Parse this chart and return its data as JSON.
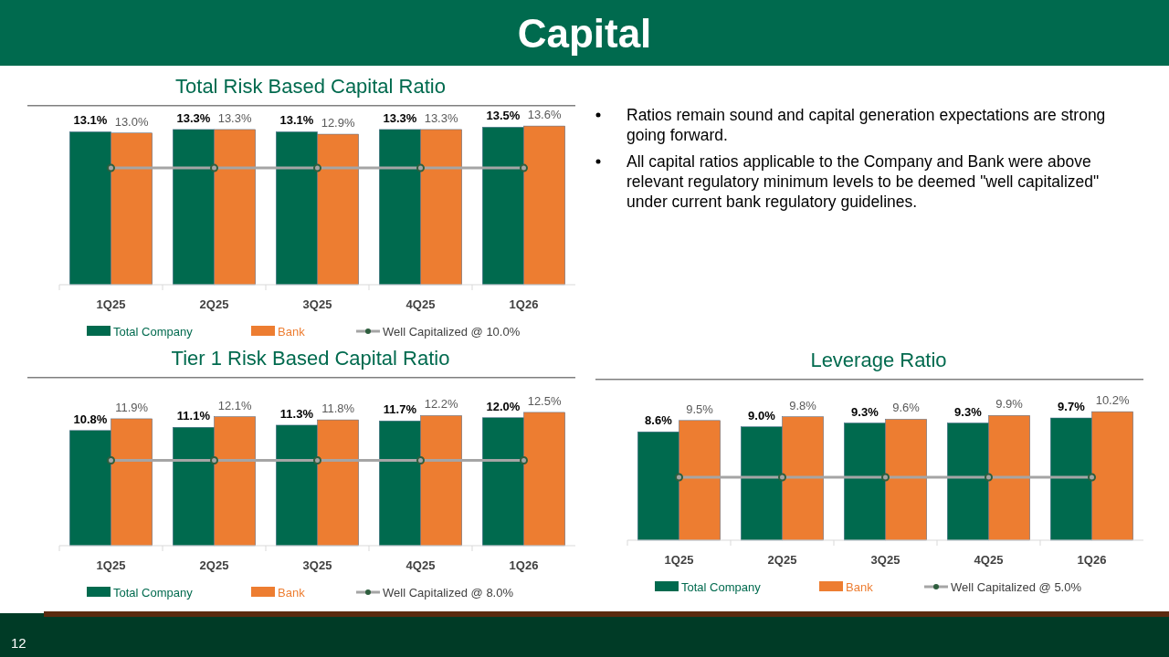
{
  "chart_data": [
    {
      "type": "other",
      "title": "Capital",
      "annotations": [
        "Ratios remain sound and capital generation expectations are strong going forward.",
        "All capital ratios applicable to the Company and Bank were above relevant regulatory minimum levels to be deemed \"well capitalized\" under current bank regulatory guidelines.",
        "12"
      ]
    },
    {
      "type": "bar",
      "title": "Total Risk Based Capital Ratio",
      "categories": [
        "1Q25",
        "2Q25",
        "3Q25",
        "4Q25",
        "1Q26"
      ],
      "legend": "bottom",
      "series": [
        {
          "name": "Total Company",
          "color": "#006a4e",
          "values": [
            13.1,
            13.3,
            13.1,
            13.3,
            13.5
          ],
          "value_labels": [
            "13.1%",
            "13.3%",
            "13.1%",
            "13.3%",
            "13.5%"
          ]
        },
        {
          "name": "Bank",
          "color": "#ed7d31",
          "values": [
            13.0,
            13.3,
            12.9,
            13.3,
            13.6
          ],
          "value_labels": [
            "13.0%",
            "13.3%",
            "12.9%",
            "13.3%",
            "13.6%"
          ]
        },
        {
          "name": "Well Capitalized @ 10.0%",
          "type": "line",
          "color": "#a5a5a5",
          "marker": "circle",
          "values": [
            10,
            10,
            10,
            10,
            10
          ]
        }
      ]
    },
    {
      "type": "bar",
      "title": "Tier 1 Risk Based Capital Ratio",
      "categories": [
        "1Q25",
        "2Q25",
        "3Q25",
        "4Q25",
        "1Q26"
      ],
      "legend": "bottom",
      "series": [
        {
          "name": "Total Company",
          "color": "#006a4e",
          "values": [
            10.8,
            11.1,
            11.3,
            11.7,
            12.0
          ],
          "value_labels": [
            "10.8%",
            "11.1%",
            "11.3%",
            "11.7%",
            "12.0%"
          ]
        },
        {
          "name": "Bank",
          "color": "#ed7d31",
          "values": [
            11.9,
            12.1,
            11.8,
            12.2,
            12.5
          ],
          "value_labels": [
            "11.9%",
            "12.1%",
            "11.8%",
            "12.2%",
            "12.5%"
          ]
        },
        {
          "name": "Well Capitalized @ 8.0%",
          "type": "line",
          "color": "#a5a5a5",
          "marker": "circle",
          "values": [
            8,
            8,
            8,
            8,
            8
          ]
        }
      ]
    },
    {
      "type": "bar",
      "title": "Leverage Ratio",
      "categories": [
        "1Q25",
        "2Q25",
        "3Q25",
        "4Q25",
        "1Q26"
      ],
      "legend": "bottom",
      "series": [
        {
          "name": "Total Company",
          "color": "#006a4e",
          "values": [
            8.6,
            9.0,
            9.3,
            9.3,
            9.7
          ],
          "value_labels": [
            "8.6%",
            "9.0%",
            "9.3%",
            "9.3%",
            "9.7%"
          ]
        },
        {
          "name": "Bank",
          "color": "#ed7d31",
          "values": [
            9.5,
            9.8,
            9.6,
            9.9,
            10.2
          ],
          "value_labels": [
            "9.5%",
            "9.8%",
            "9.6%",
            "9.9%",
            "10.2%"
          ]
        },
        {
          "name": "Well Capitalized @ 5.0%",
          "type": "line",
          "color": "#a5a5a5",
          "marker": "circle",
          "values": [
            5,
            5,
            5,
            5,
            5
          ]
        }
      ]
    }
  ]
}
